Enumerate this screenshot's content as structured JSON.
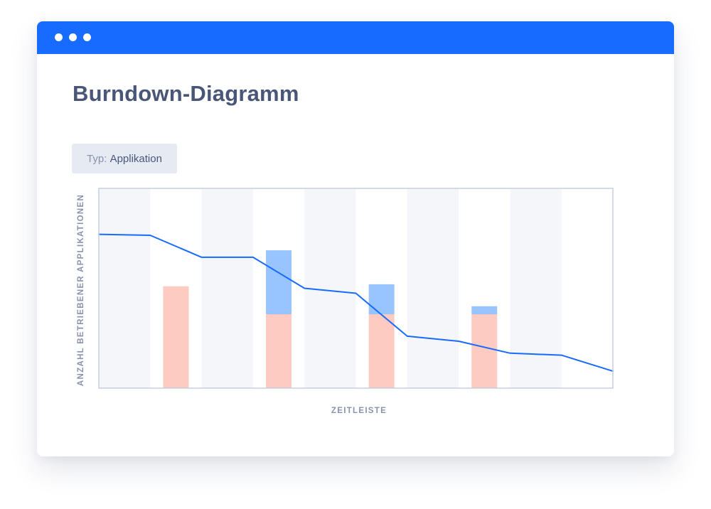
{
  "window": {
    "accent_color": "#176bff"
  },
  "page": {
    "title": "Burndown-Diagramm"
  },
  "filter": {
    "label": "Typ:",
    "value": "Applikation"
  },
  "chart_data": {
    "type": "bar",
    "title": "",
    "xlabel": "ZEITLEISTE",
    "ylabel": "ANZAHL BETRIEBENER APPLIKATIONEN",
    "ylim": [
      0,
      100
    ],
    "grid": "alternating column bands",
    "periods": 10,
    "bars": [
      {
        "period": 1,
        "base": 51,
        "extra": 0
      },
      {
        "period": 3,
        "base": 37,
        "extra": 32
      },
      {
        "period": 5,
        "base": 37,
        "extra": 15
      },
      {
        "period": 7,
        "base": 37,
        "extra": 4
      }
    ],
    "line": {
      "x": [
        0,
        1,
        2,
        3,
        4,
        5,
        6,
        7,
        8,
        9,
        10
      ],
      "y": [
        77,
        76.5,
        65.5,
        65.5,
        50,
        47.5,
        26,
        23.5,
        17.5,
        16.5,
        8.5
      ]
    },
    "colors": {
      "band": "#f4f6fa",
      "base_bar": "#fdcbc1",
      "extra_bar": "#98c4ff",
      "line": "#176bff",
      "frame": "#c4cfe0"
    }
  }
}
